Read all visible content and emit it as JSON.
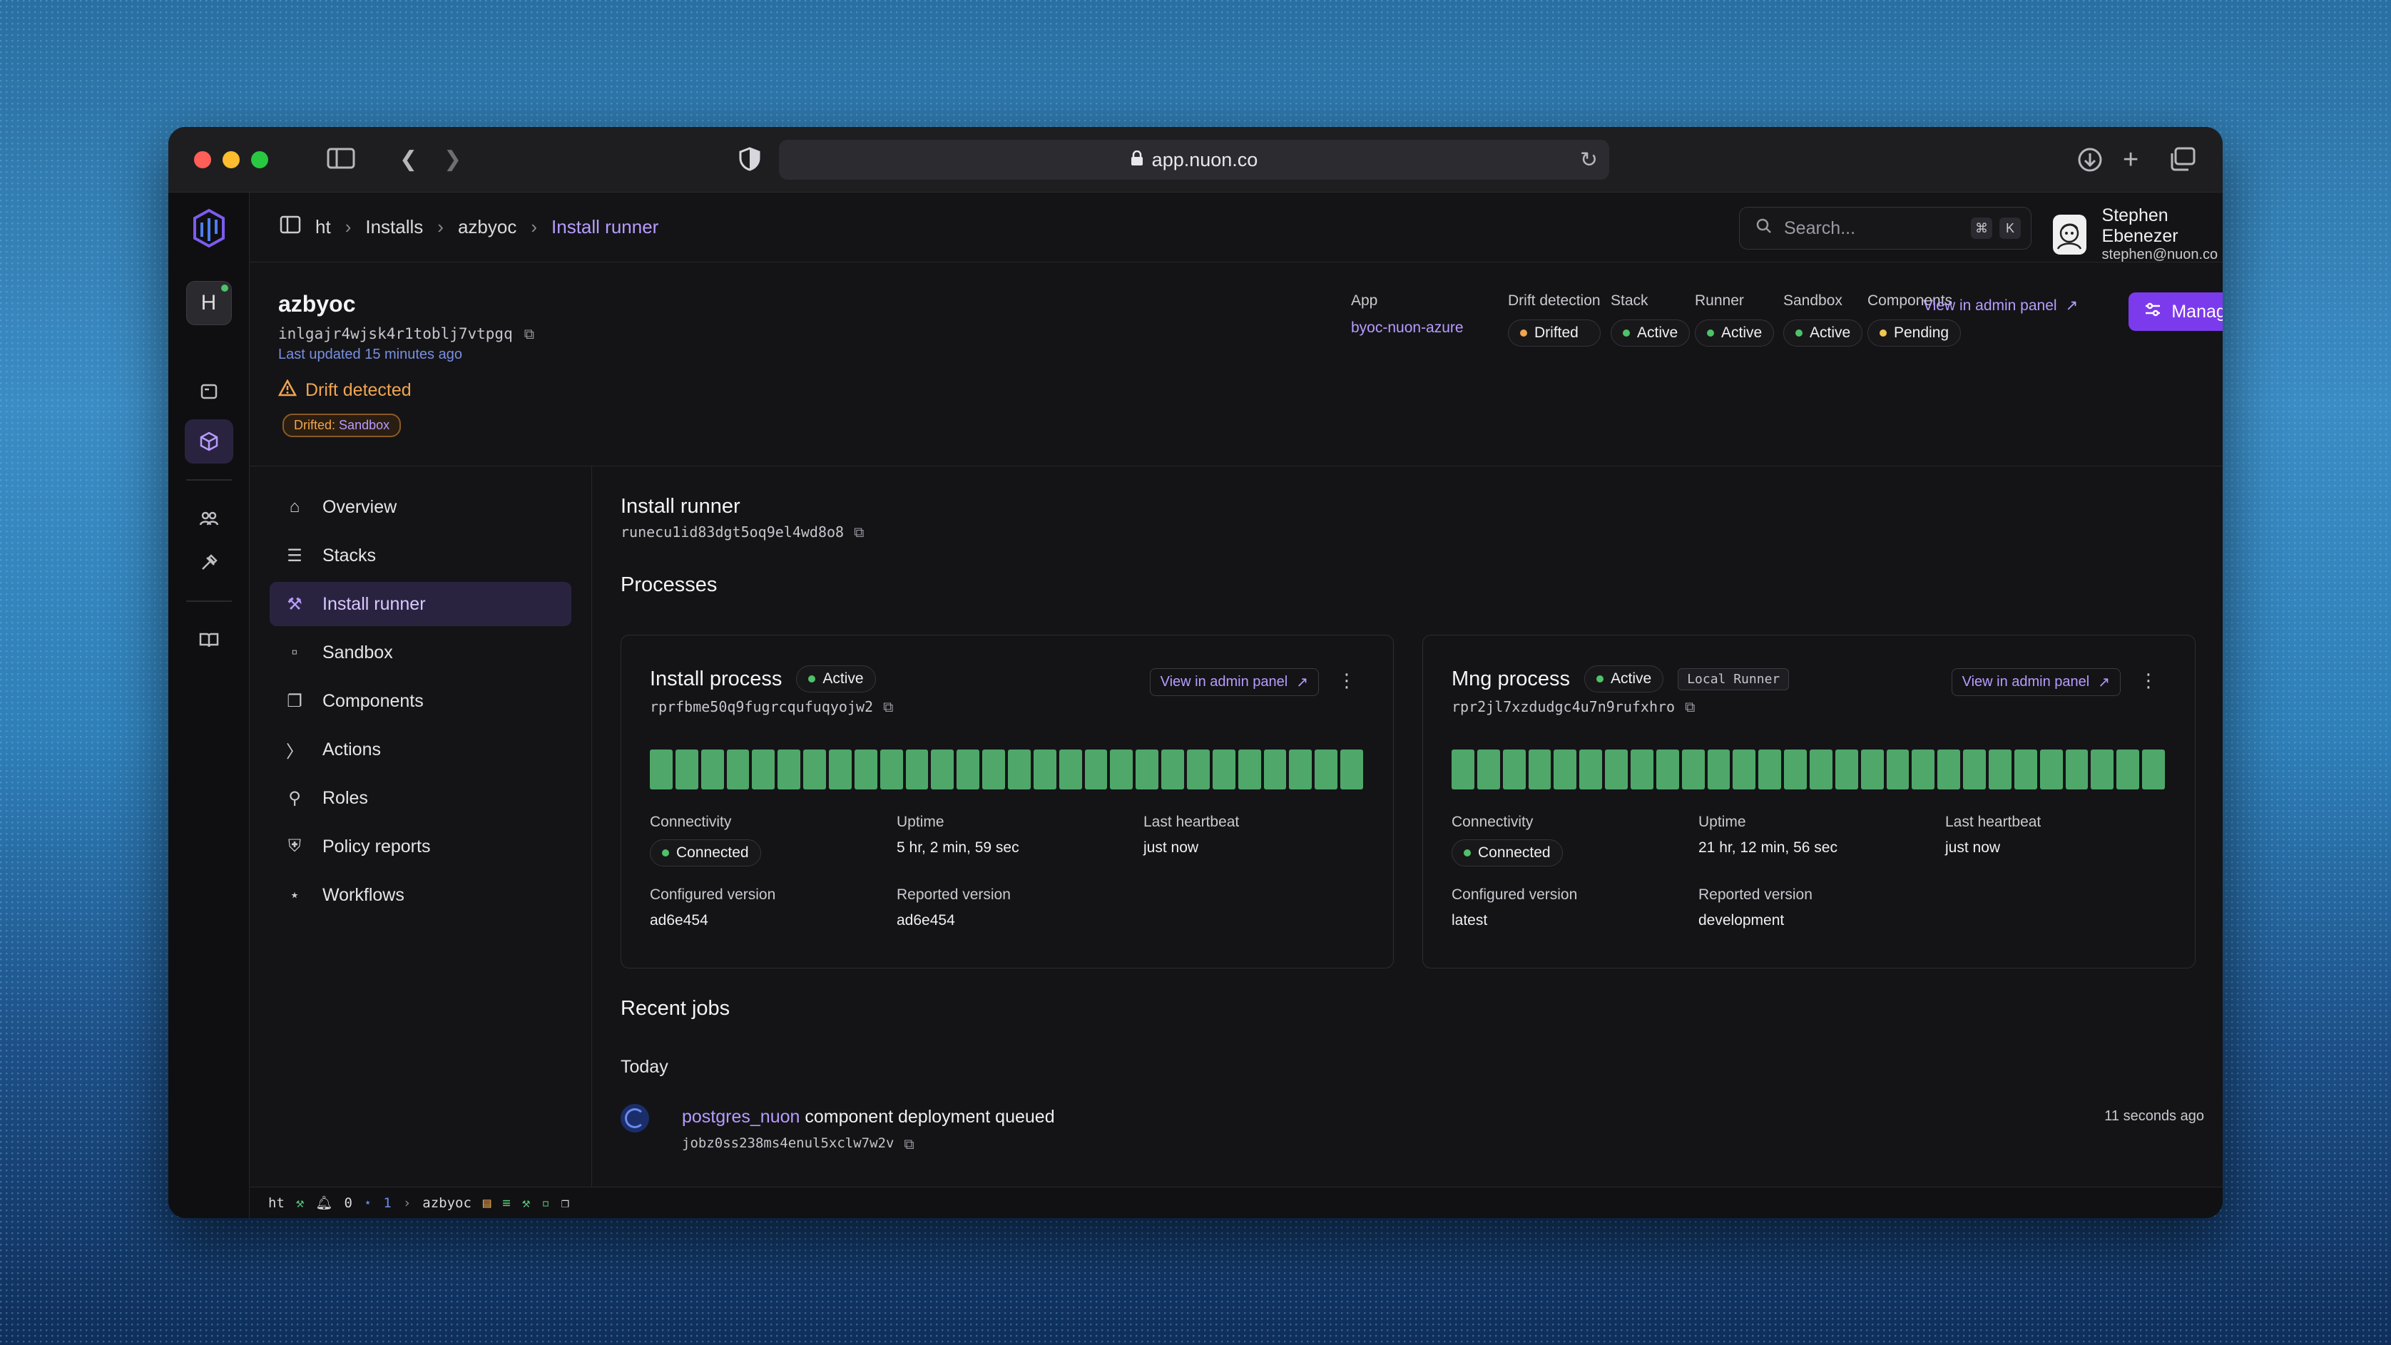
{
  "browser": {
    "url": "app.nuon.co"
  },
  "breadcrumb": {
    "items": [
      "ht",
      "Installs",
      "azbyoc"
    ],
    "current": "Install runner"
  },
  "search": {
    "placeholder": "Search...",
    "shortcut_keys": [
      "⌘",
      "K"
    ]
  },
  "user": {
    "name": "Stephen Ebenezer",
    "email": "stephen@nuon.co"
  },
  "rail": {
    "org_initial": "H"
  },
  "install": {
    "name": "azbyoc",
    "id": "inlgajr4wjsk4r1toblj7vtpgq",
    "updated": "Last updated 15 minutes ago",
    "drift_warning": "Drift detected",
    "drifted_label": "Drifted:",
    "drifted_value": "Sandbox"
  },
  "stats": {
    "app_label": "App",
    "app_value": "byoc-nuon-azure",
    "drift_label": "Drift detection",
    "drift_value": "Drifted",
    "stack_label": "Stack",
    "stack_value": "Active",
    "runner_label": "Runner",
    "runner_value": "Active",
    "sandbox_label": "Sandbox",
    "sandbox_value": "Active",
    "components_label": "Components",
    "components_value": "Pending",
    "admin_link": "View in admin panel",
    "manage_label": "Manage"
  },
  "nav": {
    "items": [
      {
        "label": "Overview",
        "icon": "home-icon"
      },
      {
        "label": "Stacks",
        "icon": "layers-icon"
      },
      {
        "label": "Install runner",
        "icon": "runner-icon"
      },
      {
        "label": "Sandbox",
        "icon": "sandbox-icon"
      },
      {
        "label": "Components",
        "icon": "components-icon"
      },
      {
        "label": "Actions",
        "icon": "terminal-icon"
      },
      {
        "label": "Roles",
        "icon": "roles-icon"
      },
      {
        "label": "Policy reports",
        "icon": "shield-icon"
      },
      {
        "label": "Workflows",
        "icon": "workflow-icon"
      }
    ],
    "active_index": 2
  },
  "runner": {
    "title": "Install runner",
    "id": "runecu1id83dgt5oq9el4wd8o8",
    "processes_heading": "Processes"
  },
  "processes": [
    {
      "title": "Install process",
      "status": "Active",
      "tag": "",
      "id": "rprfbme50q9fugrcqufuqyojw2",
      "admin_link": "View in admin panel",
      "connectivity_label": "Connectivity",
      "connectivity_value": "Connected",
      "uptime_label": "Uptime",
      "uptime_value": "5 hr, 2 min, 59 sec",
      "heartbeat_label": "Last heartbeat",
      "heartbeat_value": "just now",
      "configured_label": "Configured version",
      "configured_value": "ad6e454",
      "reported_label": "Reported version",
      "reported_value": "ad6e454"
    },
    {
      "title": "Mng process",
      "status": "Active",
      "tag": "Local Runner",
      "id": "rpr2jl7xzdudgc4u7n9rufxhro",
      "admin_link": "View in admin panel",
      "connectivity_label": "Connectivity",
      "connectivity_value": "Connected",
      "uptime_label": "Uptime",
      "uptime_value": "21 hr, 12 min, 56 sec",
      "heartbeat_label": "Last heartbeat",
      "heartbeat_value": "just now",
      "configured_label": "Configured version",
      "configured_value": "latest",
      "reported_label": "Reported version",
      "reported_value": "development"
    }
  ],
  "heartbeat_bar_count": 28,
  "jobs": {
    "heading": "Recent jobs",
    "group": "Today",
    "items": [
      {
        "component": "postgres_nuon",
        "message": " component deployment queued",
        "id": "jobz0ss238ms4enul5xclw7w2v",
        "when": "11 seconds ago"
      }
    ]
  },
  "statusbar": {
    "org": "ht",
    "notifications": "0",
    "workflows": "1",
    "install": "azbyoc"
  },
  "colors": {
    "accent": "#b79cff",
    "primary_button": "#7c3aed",
    "active_green": "#4ec26a",
    "drift_orange": "#f0a550",
    "heartbeat_bar": "#4fa86a"
  }
}
